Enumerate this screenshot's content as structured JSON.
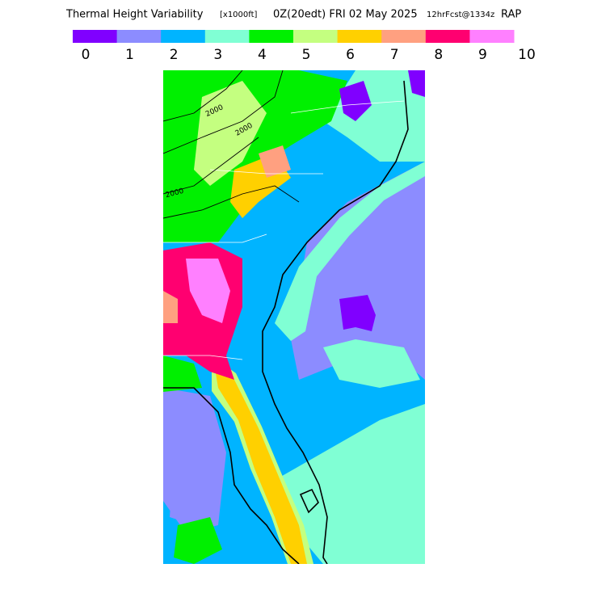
{
  "header": {
    "title": "Thermal Height Variability",
    "units": "[x1000ft]",
    "valid_time": "0Z(20edt) FRI 02 May 2025",
    "forecast": "12hrFcst@1334z",
    "model": "RAP"
  },
  "colorbar": {
    "colors": [
      "#8000ff",
      "#8c8cff",
      "#00b4ff",
      "#80ffd4",
      "#00f000",
      "#c4ff80",
      "#ffd000",
      "#ffa080",
      "#ff0070",
      "#ff80ff"
    ],
    "labels": [
      "0",
      "1",
      "2",
      "3",
      "4",
      "5",
      "6",
      "7",
      "8",
      "9",
      "10"
    ]
  },
  "map": {
    "contour_labels": [
      "2000",
      "2000",
      "2000"
    ]
  }
}
